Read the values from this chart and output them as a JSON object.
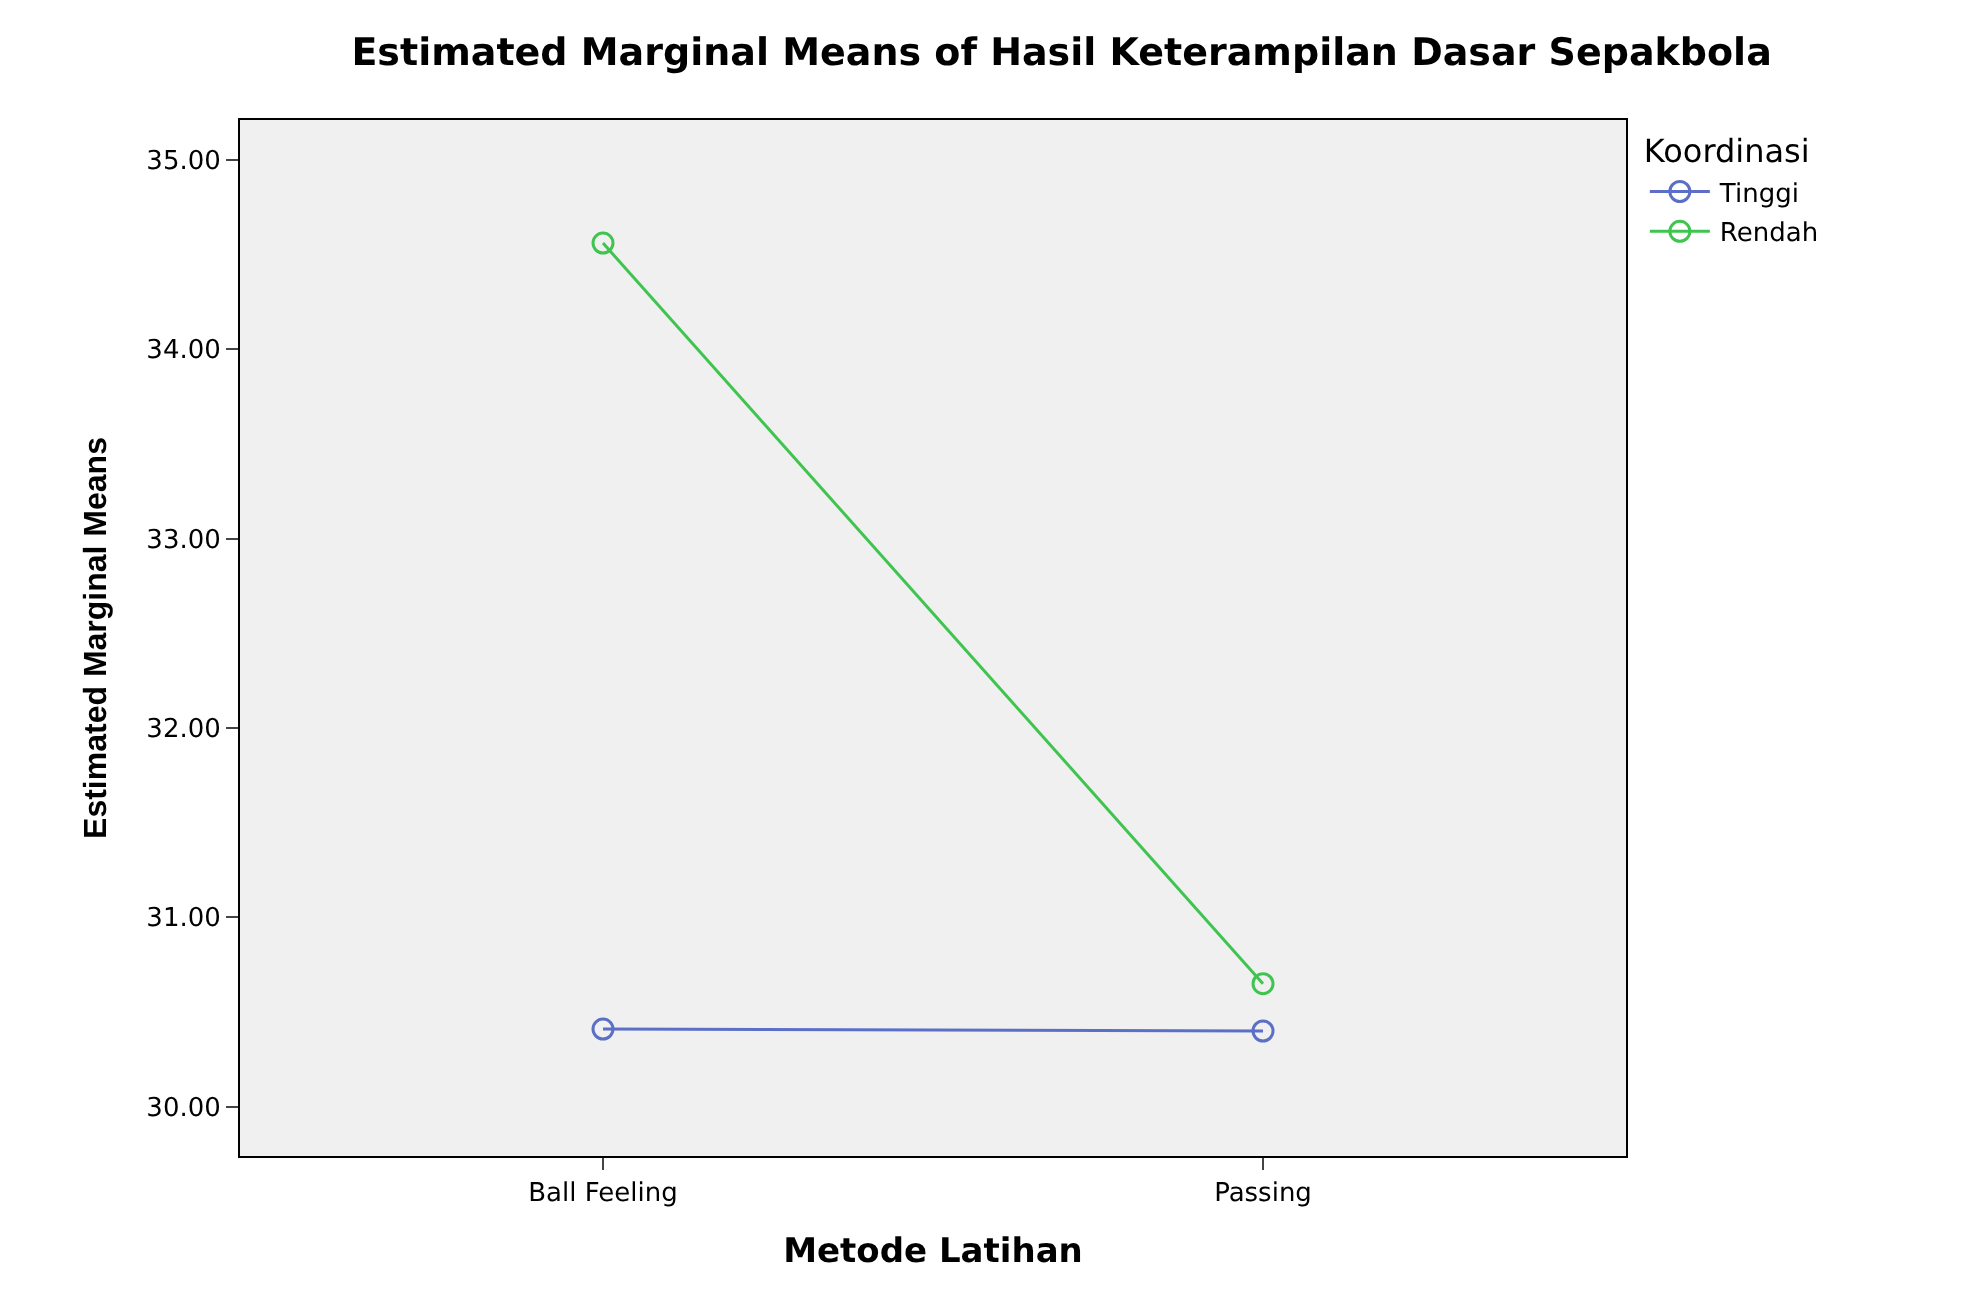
{
  "chart_data": {
    "type": "line",
    "title": "Estimated Marginal Means of Hasil Keterampilan Dasar Sepakbola",
    "xlabel": "Metode Latihan",
    "ylabel": "Estimated Marginal Means",
    "legend_title": "Koordinasi",
    "categories": [
      "Ball Feeling",
      "Passing"
    ],
    "series": [
      {
        "name": "Tinggi",
        "color": "#5b6fc7",
        "values": [
          30.41,
          30.4
        ]
      },
      {
        "name": "Rendah",
        "color": "#3fc44f",
        "values": [
          34.56,
          30.65
        ]
      }
    ],
    "ylim": [
      29.74,
      35.21
    ],
    "yticks": [
      {
        "value": 30,
        "label": "30.00"
      },
      {
        "value": 31,
        "label": "31.00"
      },
      {
        "value": 32,
        "label": "32.00"
      },
      {
        "value": 33,
        "label": "33.00"
      },
      {
        "value": 34,
        "label": "34.00"
      },
      {
        "value": 35,
        "label": "35.00"
      }
    ],
    "grid": false,
    "legend": "top right",
    "marker": "circle",
    "line_style": "solid"
  }
}
